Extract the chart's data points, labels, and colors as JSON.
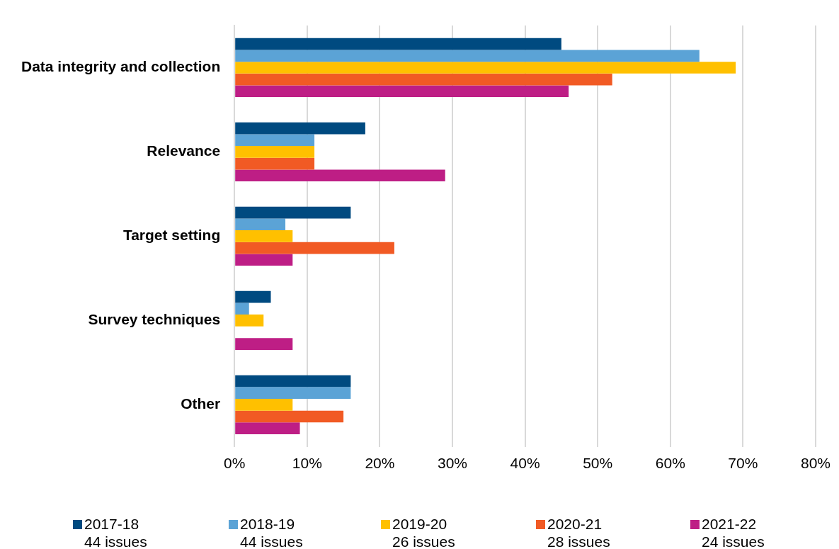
{
  "chart_data": {
    "type": "bar",
    "orientation": "horizontal",
    "categories": [
      "Data integrity and collection",
      "Relevance",
      "Target setting",
      "Survey techniques",
      "Other"
    ],
    "series": [
      {
        "name": "2017-18\n44 issues",
        "color": "#004a80",
        "values": [
          45,
          18,
          16,
          5,
          16
        ]
      },
      {
        "name": "2018-19\n44 issues",
        "color": "#5ba3d6",
        "values": [
          64,
          11,
          7,
          2,
          16
        ]
      },
      {
        "name": "2019-20\n26 issues",
        "color": "#ffc000",
        "values": [
          69,
          11,
          8,
          4,
          8
        ]
      },
      {
        "name": "2020-21\n28 issues",
        "color": "#f15a24",
        "values": [
          52,
          11,
          22,
          null,
          15
        ]
      },
      {
        "name": "2021-22\n24 issues",
        "color": "#be1e85",
        "values": [
          46,
          29,
          8,
          8,
          9
        ]
      }
    ],
    "xlim": [
      0,
      80
    ],
    "xticks": [
      {
        "value": 0,
        "label": "0%"
      },
      {
        "value": 10,
        "label": "10%"
      },
      {
        "value": 20,
        "label": "20%"
      },
      {
        "value": 30,
        "label": "30%"
      },
      {
        "value": 40,
        "label": "40%"
      },
      {
        "value": 50,
        "label": "50%"
      },
      {
        "value": 60,
        "label": "60%"
      },
      {
        "value": 70,
        "label": "70%"
      },
      {
        "value": 80,
        "label": "80%"
      }
    ],
    "grid": "x",
    "legend": "bottom"
  }
}
